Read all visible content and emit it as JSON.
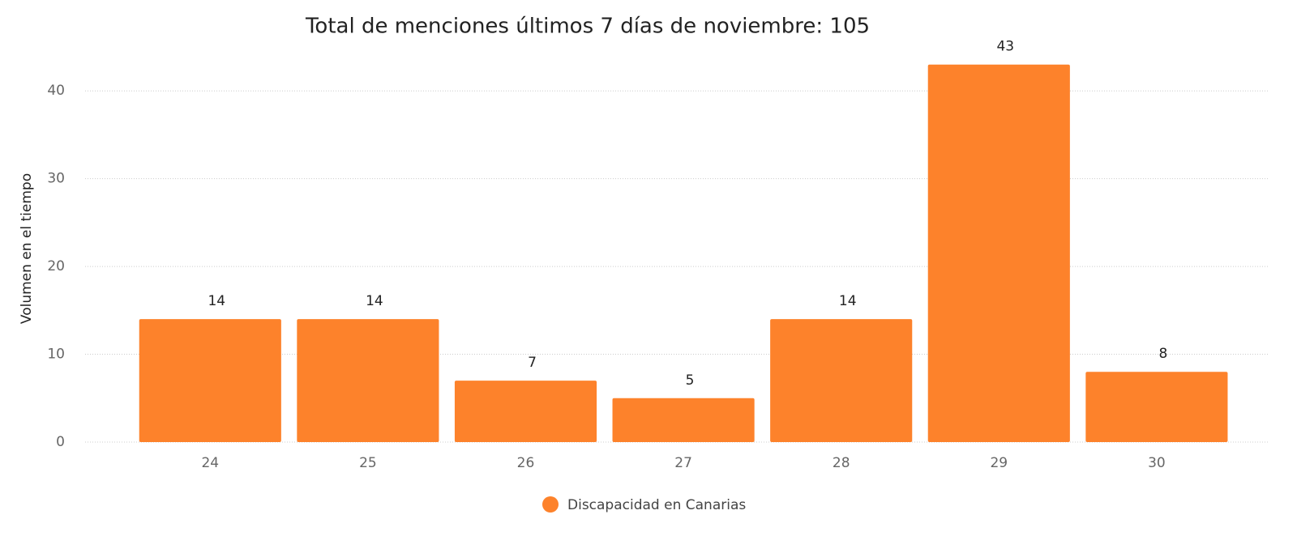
{
  "chart_data": {
    "type": "bar",
    "title": "Total de menciones últimos 7 días de noviembre: 105",
    "y_label": "Volumen en el tiempo",
    "categories": [
      "24",
      "25",
      "26",
      "27",
      "28",
      "29",
      "30"
    ],
    "series": [
      {
        "name": "Discapacidad en Canarias",
        "color": "#fd822b",
        "values": [
          14,
          14,
          7,
          5,
          14,
          43,
          8
        ]
      }
    ],
    "ylim": [
      0,
      45
    ],
    "yticks": [
      0,
      10,
      20,
      30,
      40
    ],
    "grid": true,
    "legend": "bottom"
  }
}
